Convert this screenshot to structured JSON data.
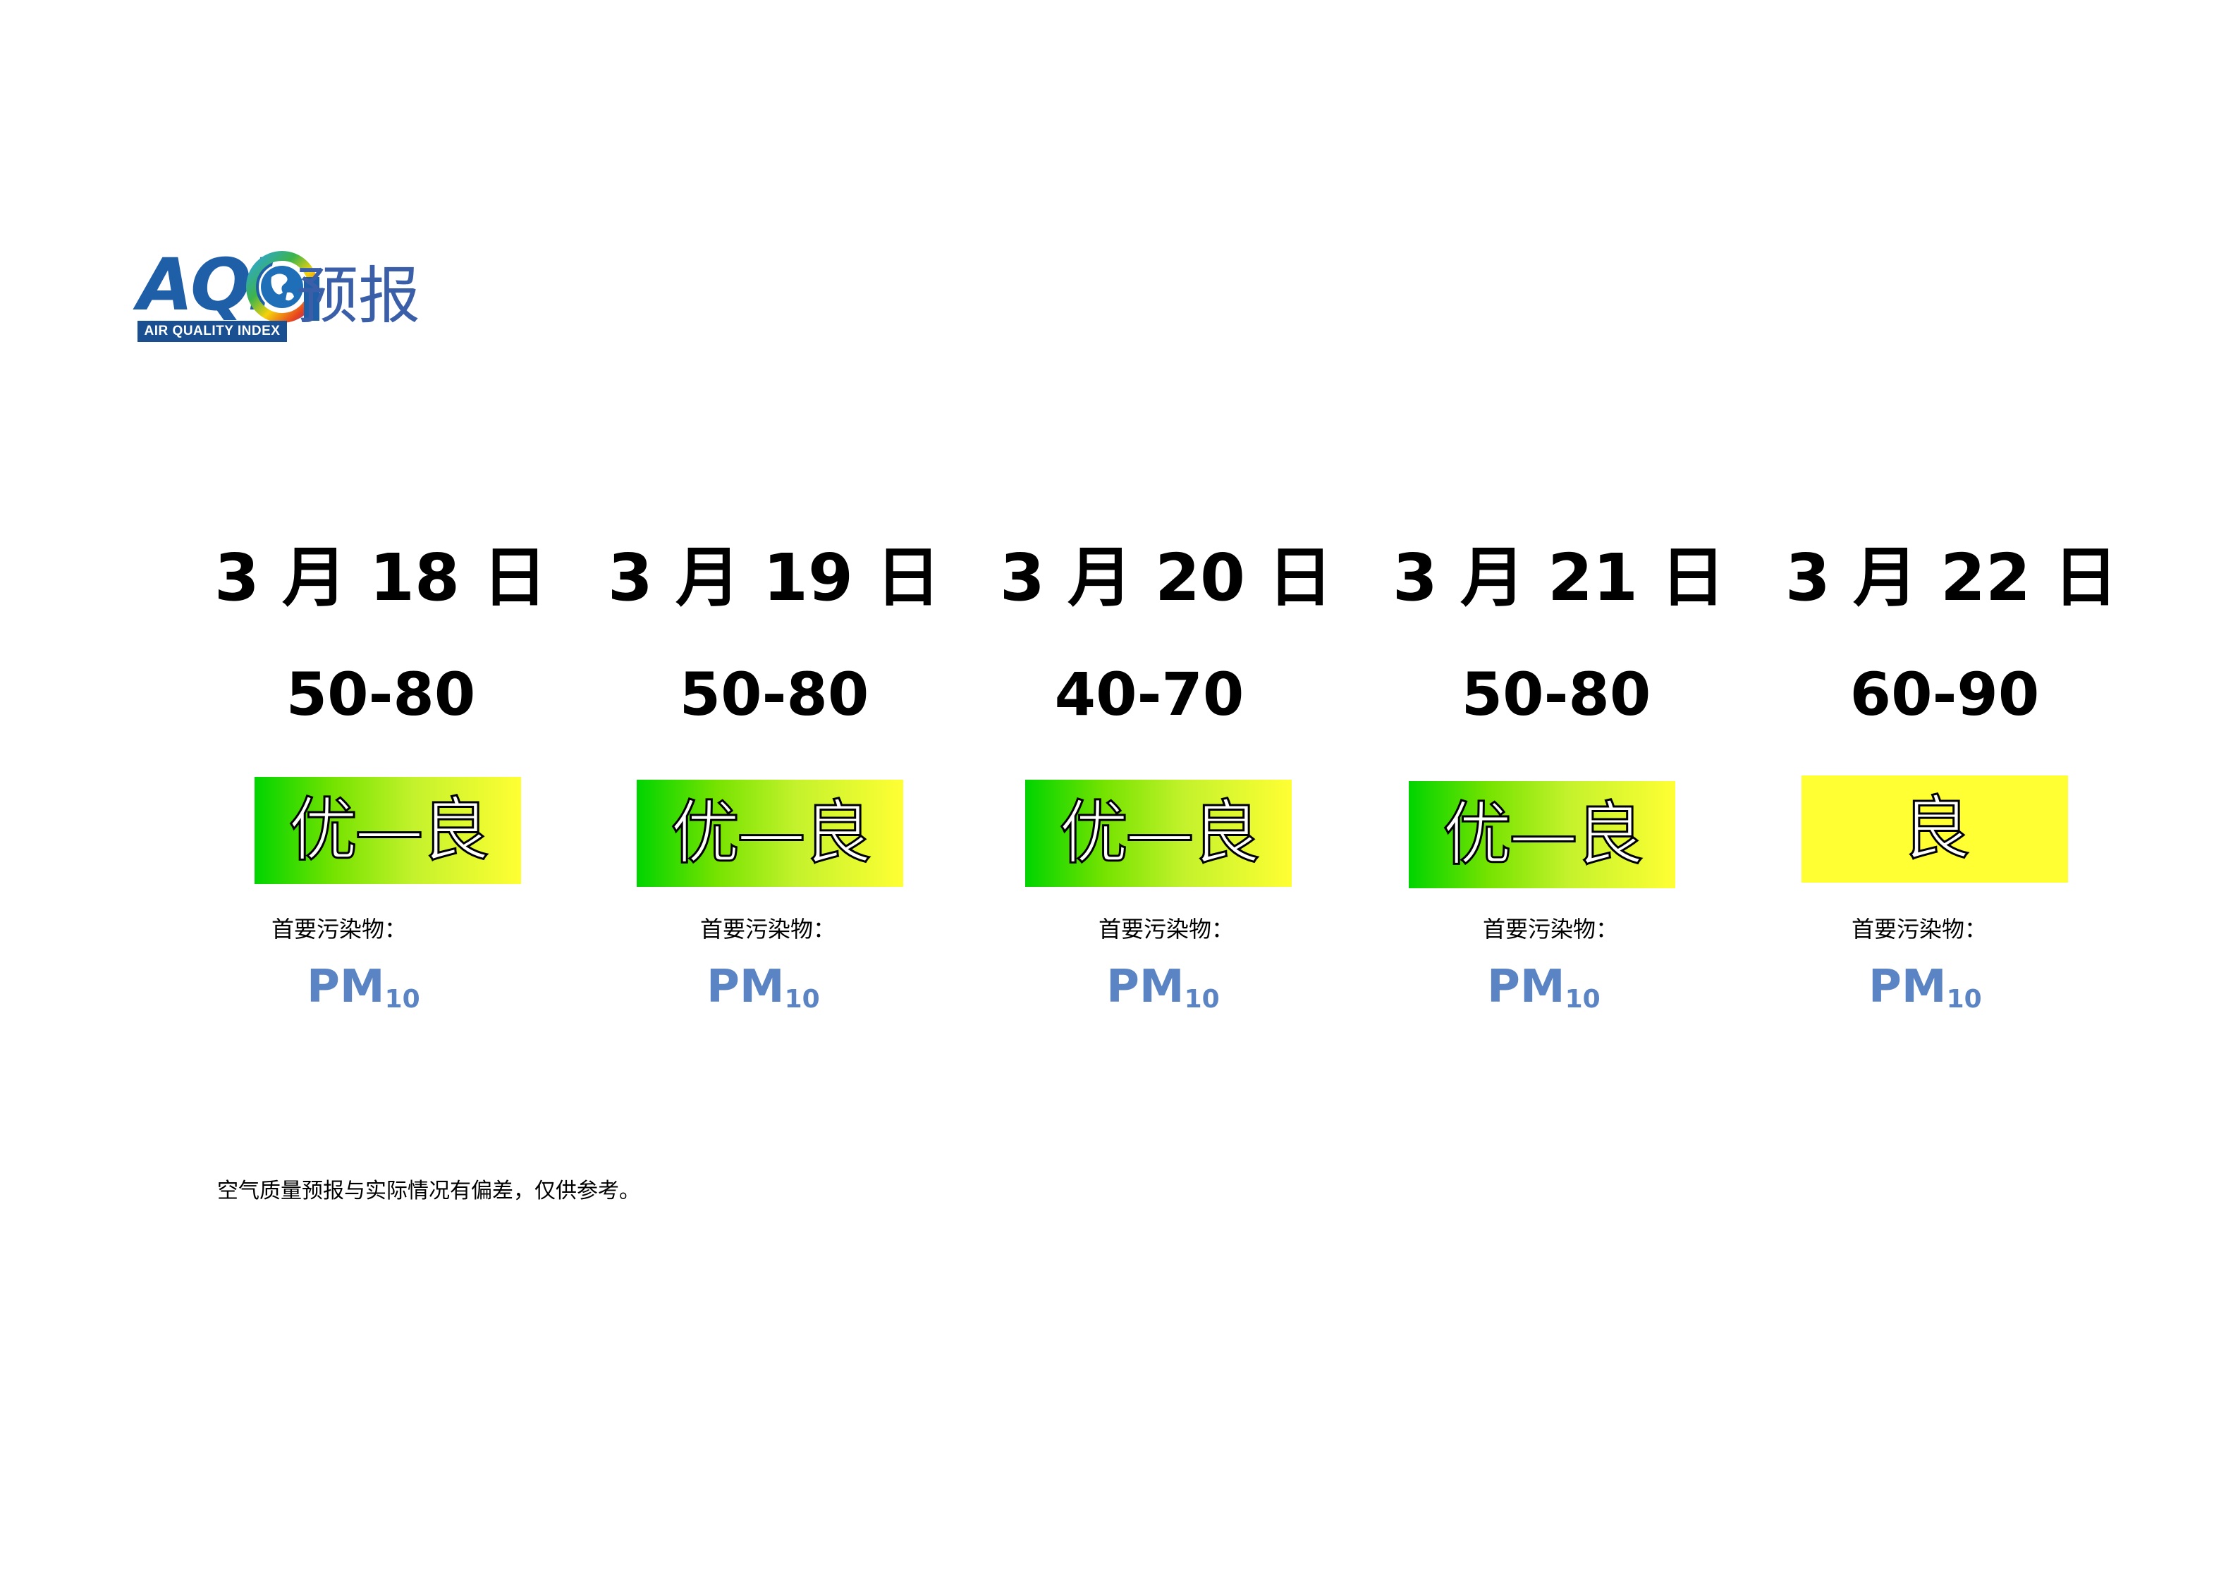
{
  "header": {
    "logo_acronym": "AQI",
    "logo_subtitle": "AIR QUALITY INDEX",
    "title_suffix": "预报"
  },
  "forecast": [
    {
      "date": "3 月 18 日",
      "range": "50-80",
      "level": "优—良",
      "pollutant_label": "首要污染物：",
      "pollutant_main": "PM",
      "pollutant_sub": "10"
    },
    {
      "date": "3 月 19 日",
      "range": "50-80",
      "level": "优—良",
      "pollutant_label": "首要污染物：",
      "pollutant_main": "PM",
      "pollutant_sub": "10"
    },
    {
      "date": "3 月 20 日",
      "range": "40-70",
      "level": "优—良",
      "pollutant_label": "首要污染物：",
      "pollutant_main": "PM",
      "pollutant_sub": "10"
    },
    {
      "date": "3 月 21 日",
      "range": "50-80",
      "level": "优—良",
      "pollutant_label": "首要污染物：",
      "pollutant_main": "PM",
      "pollutant_sub": "10"
    },
    {
      "date": "3 月 22 日",
      "range": "60-90",
      "level": "良",
      "pollutant_label": "首要污染物：",
      "pollutant_main": "PM",
      "pollutant_sub": "10"
    }
  ],
  "colors": {
    "excellent_green": "#00d400",
    "good_yellow": "#ffff33",
    "pollutant_blue": "#5b84c4",
    "logo_blue": "#1f5fa8"
  },
  "icons": {
    "logo_globe": "globe-icon"
  },
  "footer": {
    "disclaimer": "空气质量预报与实际情况有偏差，仅供参考。"
  }
}
